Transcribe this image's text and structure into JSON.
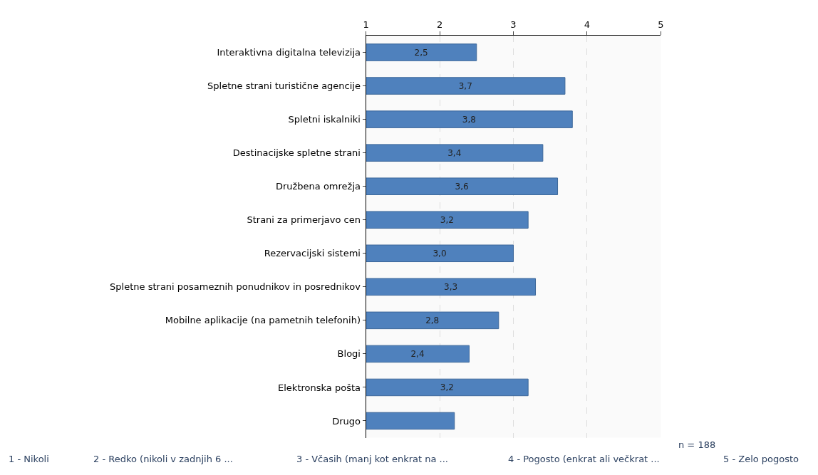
{
  "chart_data": {
    "type": "bar",
    "orientation": "horizontal",
    "categories": [
      "Interaktivna digitalna televizija",
      "Spletne strani turistične agencije",
      "Spletni iskalniki",
      "Destinacijske spletne strani",
      "Družbena omrežja",
      "Strani za primerjavo cen",
      "Rezervacijski sistemi",
      "Spletne strani posameznih ponudnikov in posrednikov",
      "Mobilne aplikacije (na pametnih telefonih)",
      "Blogi",
      "Elektronska pošta",
      "Drugo"
    ],
    "values": [
      2.5,
      3.7,
      3.8,
      3.4,
      3.6,
      3.2,
      3.0,
      3.3,
      2.8,
      2.4,
      3.2,
      2.2
    ],
    "value_labels": [
      "2,5",
      "3,7",
      "3,8",
      "3,4",
      "3,6",
      "3,2",
      "3,0",
      "3,3",
      "2,8",
      "2,4",
      "3,2",
      null
    ],
    "color": "#4f81bd",
    "xlim": [
      1,
      5
    ],
    "xticks": [
      1,
      2,
      3,
      4,
      5
    ],
    "grid": "x",
    "annotations": [
      "n = 188",
      "1 - Nikoli",
      "2 - Redko (nikoli v zadnjih 6 ...",
      "3 - Včasih (manj kot enkrat na ...",
      "4 - Pogosto (enkrat ali večkrat ...",
      "5 - Zelo pogosto"
    ]
  }
}
